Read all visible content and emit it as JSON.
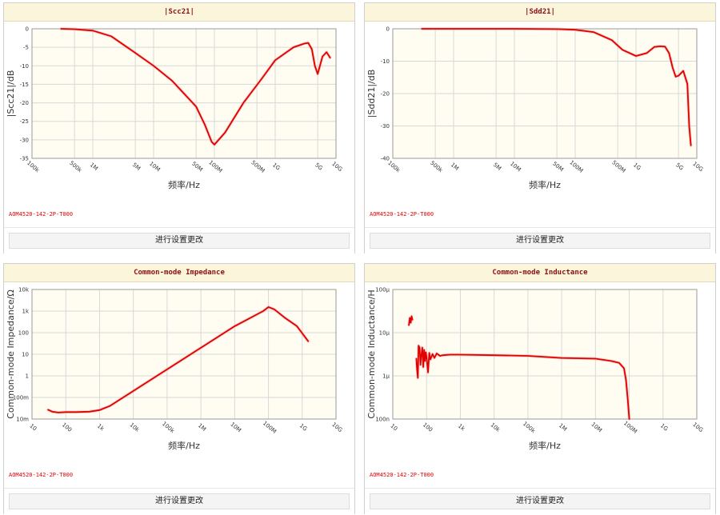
{
  "button_label": "进行设置更改",
  "chart_data": [
    {
      "type": "line",
      "title": "|Scc21|",
      "xlabel": "频率/Hz",
      "ylabel": "|Scc21|/dB",
      "part_number": "AOM4520-142-2P-T000",
      "x_scale": "log",
      "xlim": [
        100000,
        10000000000
      ],
      "ylim": [
        -35,
        0
      ],
      "x_ticks": [
        100000,
        500000,
        1000000,
        5000000,
        10000000,
        50000000,
        100000000,
        500000000,
        1000000000,
        5000000000,
        10000000000
      ],
      "x_tick_labels": [
        "100k",
        "500k",
        "1M",
        "5M",
        "10M",
        "50M",
        "100M",
        "500M",
        "1G",
        "5G",
        "10G"
      ],
      "y_ticks": [
        0,
        -5,
        -10,
        -15,
        -20,
        -25,
        -30,
        -35
      ],
      "y_tick_labels": [
        "0",
        "-5",
        "-10",
        "-15",
        "-20",
        "-25",
        "-30",
        "-35"
      ],
      "grid": true,
      "line_color": "#e00000",
      "series": [
        {
          "x": [
            300000,
            500000,
            1000000,
            2000000,
            5000000,
            10000000,
            20000000,
            50000000,
            70000000,
            90000000,
            100000000,
            150000000,
            300000000,
            600000000,
            1000000000,
            2000000000,
            3000000000,
            3500000000,
            4000000000,
            4500000000,
            5000000000,
            6000000000,
            7000000000,
            8000000000
          ],
          "y": [
            0,
            -0.1,
            -0.5,
            -2,
            -6.5,
            -10,
            -14,
            -21,
            -26,
            -30.5,
            -31.3,
            -28,
            -20,
            -13.5,
            -8.5,
            -5,
            -4,
            -3.8,
            -5.5,
            -10,
            -12.2,
            -7.5,
            -6.3,
            -7.8
          ]
        }
      ]
    },
    {
      "type": "line",
      "title": "|Sdd21|",
      "xlabel": "频率/Hz",
      "ylabel": "|Sdd21|/dB",
      "part_number": "AOM4520-142-2P-T000",
      "x_scale": "log",
      "xlim": [
        100000,
        10000000000
      ],
      "ylim": [
        -40,
        0
      ],
      "x_ticks": [
        100000,
        500000,
        1000000,
        5000000,
        10000000,
        50000000,
        100000000,
        500000000,
        1000000000,
        5000000000,
        10000000000
      ],
      "x_tick_labels": [
        "100k",
        "500k",
        "1M",
        "5M",
        "10M",
        "50M",
        "100M",
        "500M",
        "1G",
        "5G",
        "10G"
      ],
      "y_ticks": [
        0,
        -10,
        -20,
        -30,
        -40
      ],
      "y_tick_labels": [
        "0",
        "-10",
        "-20",
        "-30",
        "-40"
      ],
      "grid": true,
      "line_color": "#e00000",
      "series": [
        {
          "x": [
            300000,
            1000000,
            10000000,
            50000000,
            100000000,
            200000000,
            400000000,
            600000000,
            1000000000,
            1500000000,
            2000000000,
            2500000000,
            3000000000,
            3500000000,
            4000000000,
            4500000000,
            5000000000,
            6000000000,
            7000000000,
            7500000000,
            8000000000
          ],
          "y": [
            0,
            0,
            0,
            -0.1,
            -0.3,
            -1,
            -3.5,
            -6.5,
            -8.4,
            -7.5,
            -5.6,
            -5.4,
            -5.5,
            -7.5,
            -12,
            -14.8,
            -14.5,
            -13,
            -17,
            -30,
            -36
          ]
        }
      ]
    },
    {
      "type": "line",
      "title": "Common-mode Impedance",
      "xlabel": "频率/Hz",
      "ylabel": "Common-mode Impedance/Ω",
      "part_number": "AOM4520-142-2P-T000",
      "x_scale": "log",
      "y_scale": "log",
      "xlim": [
        10,
        10000000000
      ],
      "ylim": [
        0.01,
        10000
      ],
      "x_ticks": [
        10,
        100,
        1000,
        10000,
        100000,
        1000000,
        10000000,
        100000000,
        1000000000,
        10000000000
      ],
      "x_tick_labels": [
        "10",
        "100",
        "1k",
        "10k",
        "100k",
        "1M",
        "10M",
        "100M",
        "1G",
        "10G"
      ],
      "y_ticks": [
        0.01,
        0.1,
        1,
        10,
        100,
        1000,
        10000
      ],
      "y_tick_labels": [
        "10m",
        "100m",
        "1",
        "10",
        "100",
        "1k",
        "10k"
      ],
      "grid": true,
      "line_color": "#e00000",
      "series": [
        {
          "x": [
            30,
            40,
            60,
            100,
            200,
            500,
            1000,
            2000,
            5000,
            10000,
            100000,
            1000000,
            10000000,
            70000000,
            100000000,
            150000000,
            300000000,
            700000000,
            1500000000
          ],
          "y": [
            0.027,
            0.022,
            0.02,
            0.021,
            0.021,
            0.022,
            0.026,
            0.04,
            0.1,
            0.2,
            2,
            20,
            200,
            1000,
            1550,
            1200,
            500,
            200,
            40
          ]
        }
      ]
    },
    {
      "type": "line",
      "title": "Common-mode Inductance",
      "xlabel": "频率/Hz",
      "ylabel": "Common-mode Inductance/H",
      "part_number": "AOM4520-142-2P-T000",
      "x_scale": "log",
      "y_scale": "log",
      "xlim": [
        10,
        10000000000
      ],
      "ylim": [
        1e-07,
        0.0001
      ],
      "x_ticks": [
        10,
        100,
        1000,
        10000,
        100000,
        1000000,
        10000000,
        100000000,
        1000000000,
        10000000000
      ],
      "x_tick_labels": [
        "10",
        "100",
        "1k",
        "10k",
        "100k",
        "1M",
        "10M",
        "100M",
        "1G",
        "10G"
      ],
      "y_ticks": [
        1e-07,
        1e-06,
        1e-05,
        0.0001
      ],
      "y_tick_labels": [
        "100n",
        "1μ",
        "10μ",
        "100μ"
      ],
      "grid": true,
      "line_color": "#e00000",
      "series": [
        {
          "x": [
            30,
            32,
            34,
            36,
            38
          ],
          "y": [
            1.5e-05,
            2.2e-05,
            1.7e-05,
            2.4e-05,
            2e-05
          ]
        },
        {
          "x": [
            50,
            52,
            55,
            58,
            62,
            66,
            70,
            75,
            80,
            85,
            90,
            95,
            100,
            110,
            120,
            130,
            150,
            170,
            200,
            250,
            300,
            500,
            1000,
            10000,
            100000,
            1000000,
            10000000,
            30000000,
            50000000,
            70000000,
            80000000,
            90000000,
            100000000
          ],
          "y": [
            2.5e-06,
            1.5e-06,
            9e-07,
            5e-06,
            4.5e-06,
            1.8e-06,
            3e-06,
            4.5e-06,
            1.6e-06,
            4e-06,
            2.2e-06,
            3.5e-06,
            2.8e-06,
            1.2e-06,
            3.4e-06,
            2.4e-06,
            3.2e-06,
            2.6e-06,
            3.3e-06,
            2.9e-06,
            3e-06,
            3.1e-06,
            3.1e-06,
            3e-06,
            2.9e-06,
            2.6e-06,
            2.5e-06,
            2.2e-06,
            2e-06,
            1.5e-06,
            8e-07,
            3e-07,
            1e-07
          ]
        }
      ]
    }
  ]
}
